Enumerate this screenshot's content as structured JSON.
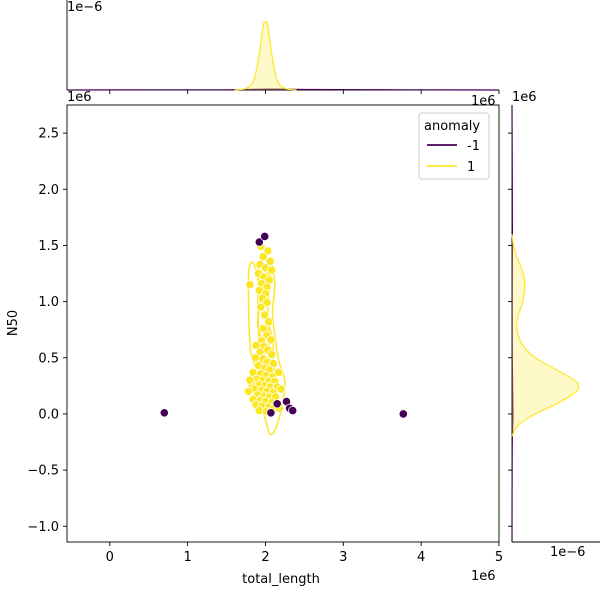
{
  "chart_data": {
    "type": "scatter",
    "kind": "jointplot with KDE contours and marginal KDE densities",
    "xlabel": "total_length",
    "ylabel": "N50",
    "x_offset_label": "1e6",
    "y_offset_label": "1e6",
    "top_marginal_offset_label": "1e−6",
    "right_marginal_offset_label": "1e−6",
    "xlim": [
      -0.55,
      5.0
    ],
    "ylim": [
      -1.14,
      2.75
    ],
    "x_ticks": [
      0,
      1,
      2,
      3,
      4,
      5
    ],
    "y_ticks": [
      -1.0,
      -0.5,
      0.0,
      0.5,
      1.0,
      1.5,
      2.0,
      2.5
    ],
    "x_tick_labels": [
      "0",
      "1",
      "2",
      "3",
      "4",
      "5"
    ],
    "y_tick_labels": [
      "−1.0",
      "−0.5",
      "0.0",
      "0.5",
      "1.0",
      "1.5",
      "2.0",
      "2.5"
    ],
    "grid": false,
    "legend": {
      "title": "anomaly",
      "placement": "top-right",
      "entries": [
        {
          "label": "-1",
          "color": "#440154"
        },
        {
          "label": "1",
          "color": "#fde725"
        }
      ]
    },
    "series": [
      {
        "name": "-1",
        "color": "#440154",
        "points": [
          [
            0.7,
            0.01
          ],
          [
            1.92,
            1.53
          ],
          [
            1.99,
            1.58
          ],
          [
            2.07,
            0.01
          ],
          [
            2.15,
            0.09
          ],
          [
            2.27,
            0.11
          ],
          [
            2.31,
            0.05
          ],
          [
            2.35,
            0.03
          ],
          [
            3.77,
            0.0
          ]
        ]
      },
      {
        "name": "1",
        "color": "#fde725",
        "points": [
          [
            1.94,
            1.49
          ],
          [
            2.03,
            1.45
          ],
          [
            1.97,
            1.4
          ],
          [
            2.06,
            1.36
          ],
          [
            1.93,
            1.33
          ],
          [
            2.0,
            1.3
          ],
          [
            2.08,
            1.28
          ],
          [
            1.91,
            1.25
          ],
          [
            1.98,
            1.22
          ],
          [
            2.05,
            1.19
          ],
          [
            1.95,
            1.16
          ],
          [
            2.02,
            1.13
          ],
          [
            1.8,
            1.15
          ],
          [
            1.92,
            1.1
          ],
          [
            2.0,
            1.07
          ],
          [
            1.96,
            1.03
          ],
          [
            2.02,
            0.99
          ],
          [
            1.94,
            0.95
          ],
          [
            1.99,
            0.88
          ],
          [
            2.04,
            0.82
          ],
          [
            1.97,
            0.76
          ],
          [
            2.02,
            0.7
          ],
          [
            1.95,
            0.65
          ],
          [
            2.07,
            0.66
          ],
          [
            1.88,
            0.61
          ],
          [
            1.98,
            0.6
          ],
          [
            2.03,
            0.57
          ],
          [
            1.93,
            0.55
          ],
          [
            2.08,
            0.53
          ],
          [
            1.87,
            0.5
          ],
          [
            1.97,
            0.49
          ],
          [
            2.02,
            0.46
          ],
          [
            2.1,
            0.45
          ],
          [
            1.91,
            0.43
          ],
          [
            1.99,
            0.41
          ],
          [
            2.05,
            0.39
          ],
          [
            1.84,
            0.37
          ],
          [
            1.94,
            0.36
          ],
          [
            2.01,
            0.34
          ],
          [
            2.09,
            0.33
          ],
          [
            1.89,
            0.31
          ],
          [
            1.96,
            0.3
          ],
          [
            2.04,
            0.29
          ],
          [
            2.12,
            0.29
          ],
          [
            1.82,
            0.27
          ],
          [
            1.92,
            0.26
          ],
          [
            1.99,
            0.25
          ],
          [
            2.06,
            0.24
          ],
          [
            2.15,
            0.24
          ],
          [
            1.86,
            0.22
          ],
          [
            1.95,
            0.21
          ],
          [
            2.02,
            0.2
          ],
          [
            2.1,
            0.19
          ],
          [
            1.78,
            0.2
          ],
          [
            1.9,
            0.17
          ],
          [
            1.98,
            0.16
          ],
          [
            2.05,
            0.15
          ],
          [
            2.13,
            0.15
          ],
          [
            2.2,
            0.22
          ],
          [
            1.84,
            0.13
          ],
          [
            1.93,
            0.12
          ],
          [
            2.0,
            0.11
          ],
          [
            2.08,
            0.1
          ],
          [
            1.88,
            0.08
          ],
          [
            1.96,
            0.07
          ],
          [
            2.04,
            0.06
          ],
          [
            2.11,
            0.05
          ],
          [
            1.92,
            0.03
          ],
          [
            2.01,
            0.02
          ],
          [
            2.18,
            0.05
          ],
          [
            1.8,
            0.3
          ],
          [
            2.17,
            0.37
          ]
        ]
      }
    ],
    "top_marginal": {
      "type": "kde",
      "ylim": [
        0,
        1.0
      ],
      "series": [
        {
          "name": "-1",
          "color": "#440154",
          "x": [
            -0.55,
            0.7,
            1.5,
            2.0,
            2.5,
            3.77,
            5.0
          ],
          "density": [
            0,
            0.003,
            0.003,
            0.01,
            0.006,
            0.003,
            0
          ]
        },
        {
          "name": "1",
          "color": "#fde725",
          "x": [
            1.6,
            1.75,
            1.85,
            1.92,
            1.97,
            2.0,
            2.03,
            2.08,
            2.15,
            2.25,
            2.4
          ],
          "density": [
            0.0,
            0.02,
            0.12,
            0.45,
            0.8,
            0.85,
            0.8,
            0.45,
            0.12,
            0.02,
            0.0
          ]
        }
      ]
    },
    "right_marginal": {
      "type": "kde",
      "xlim": [
        0,
        1.0
      ],
      "series": [
        {
          "name": "-1",
          "color": "#440154",
          "y": [
            -1.14,
            -0.3,
            0.0,
            0.5,
            1.0,
            1.55,
            2.75
          ],
          "density": [
            0,
            0.003,
            0.012,
            0.004,
            0.003,
            0.005,
            0
          ]
        },
        {
          "name": "1",
          "color": "#fde725",
          "y": [
            -0.2,
            -0.1,
            0.0,
            0.1,
            0.2,
            0.25,
            0.3,
            0.4,
            0.5,
            0.6,
            0.7,
            0.8,
            0.9,
            1.0,
            1.1,
            1.2,
            1.3,
            1.4,
            1.5,
            1.6
          ],
          "density": [
            0.0,
            0.08,
            0.3,
            0.6,
            0.82,
            0.85,
            0.8,
            0.55,
            0.3,
            0.15,
            0.08,
            0.06,
            0.09,
            0.14,
            0.16,
            0.16,
            0.12,
            0.06,
            0.02,
            0.0
          ]
        }
      ]
    },
    "kde_contours": [
      {
        "color": "#fde725",
        "x": [
          2.08,
          2.05,
          2.03,
          2.1,
          2.06,
          2.0,
          1.97,
          1.9,
          1.94,
          1.88,
          1.82,
          1.78,
          1.8,
          1.85,
          1.9,
          1.95,
          2.0,
          2.05,
          2.1,
          2.17,
          2.22,
          2.25,
          2.23,
          2.18,
          2.15,
          2.13,
          2.09,
          2.12,
          2.08
        ],
        "y": [
          1.36,
          1.1,
          0.85,
          0.63,
          0.5,
          0.48,
          0.62,
          0.8,
          1.05,
          1.28,
          1.35,
          1.2,
          0.62,
          0.45,
          0.3,
          0.1,
          -0.05,
          -0.17,
          -0.17,
          -0.05,
          0.1,
          0.25,
          0.35,
          0.45,
          0.55,
          0.65,
          0.9,
          1.15,
          1.36
        ]
      },
      {
        "color": "#fde725",
        "x": [
          2.02,
          2.05,
          1.98,
          1.93,
          1.9,
          1.92,
          1.96,
          2.0,
          2.05,
          2.1,
          2.12,
          2.08,
          2.05,
          2.02
        ],
        "y": [
          1.32,
          1.15,
          0.98,
          1.1,
          1.28,
          0.45,
          0.2,
          0.05,
          0.05,
          0.22,
          0.4,
          0.52,
          0.4,
          1.32
        ]
      }
    ]
  }
}
